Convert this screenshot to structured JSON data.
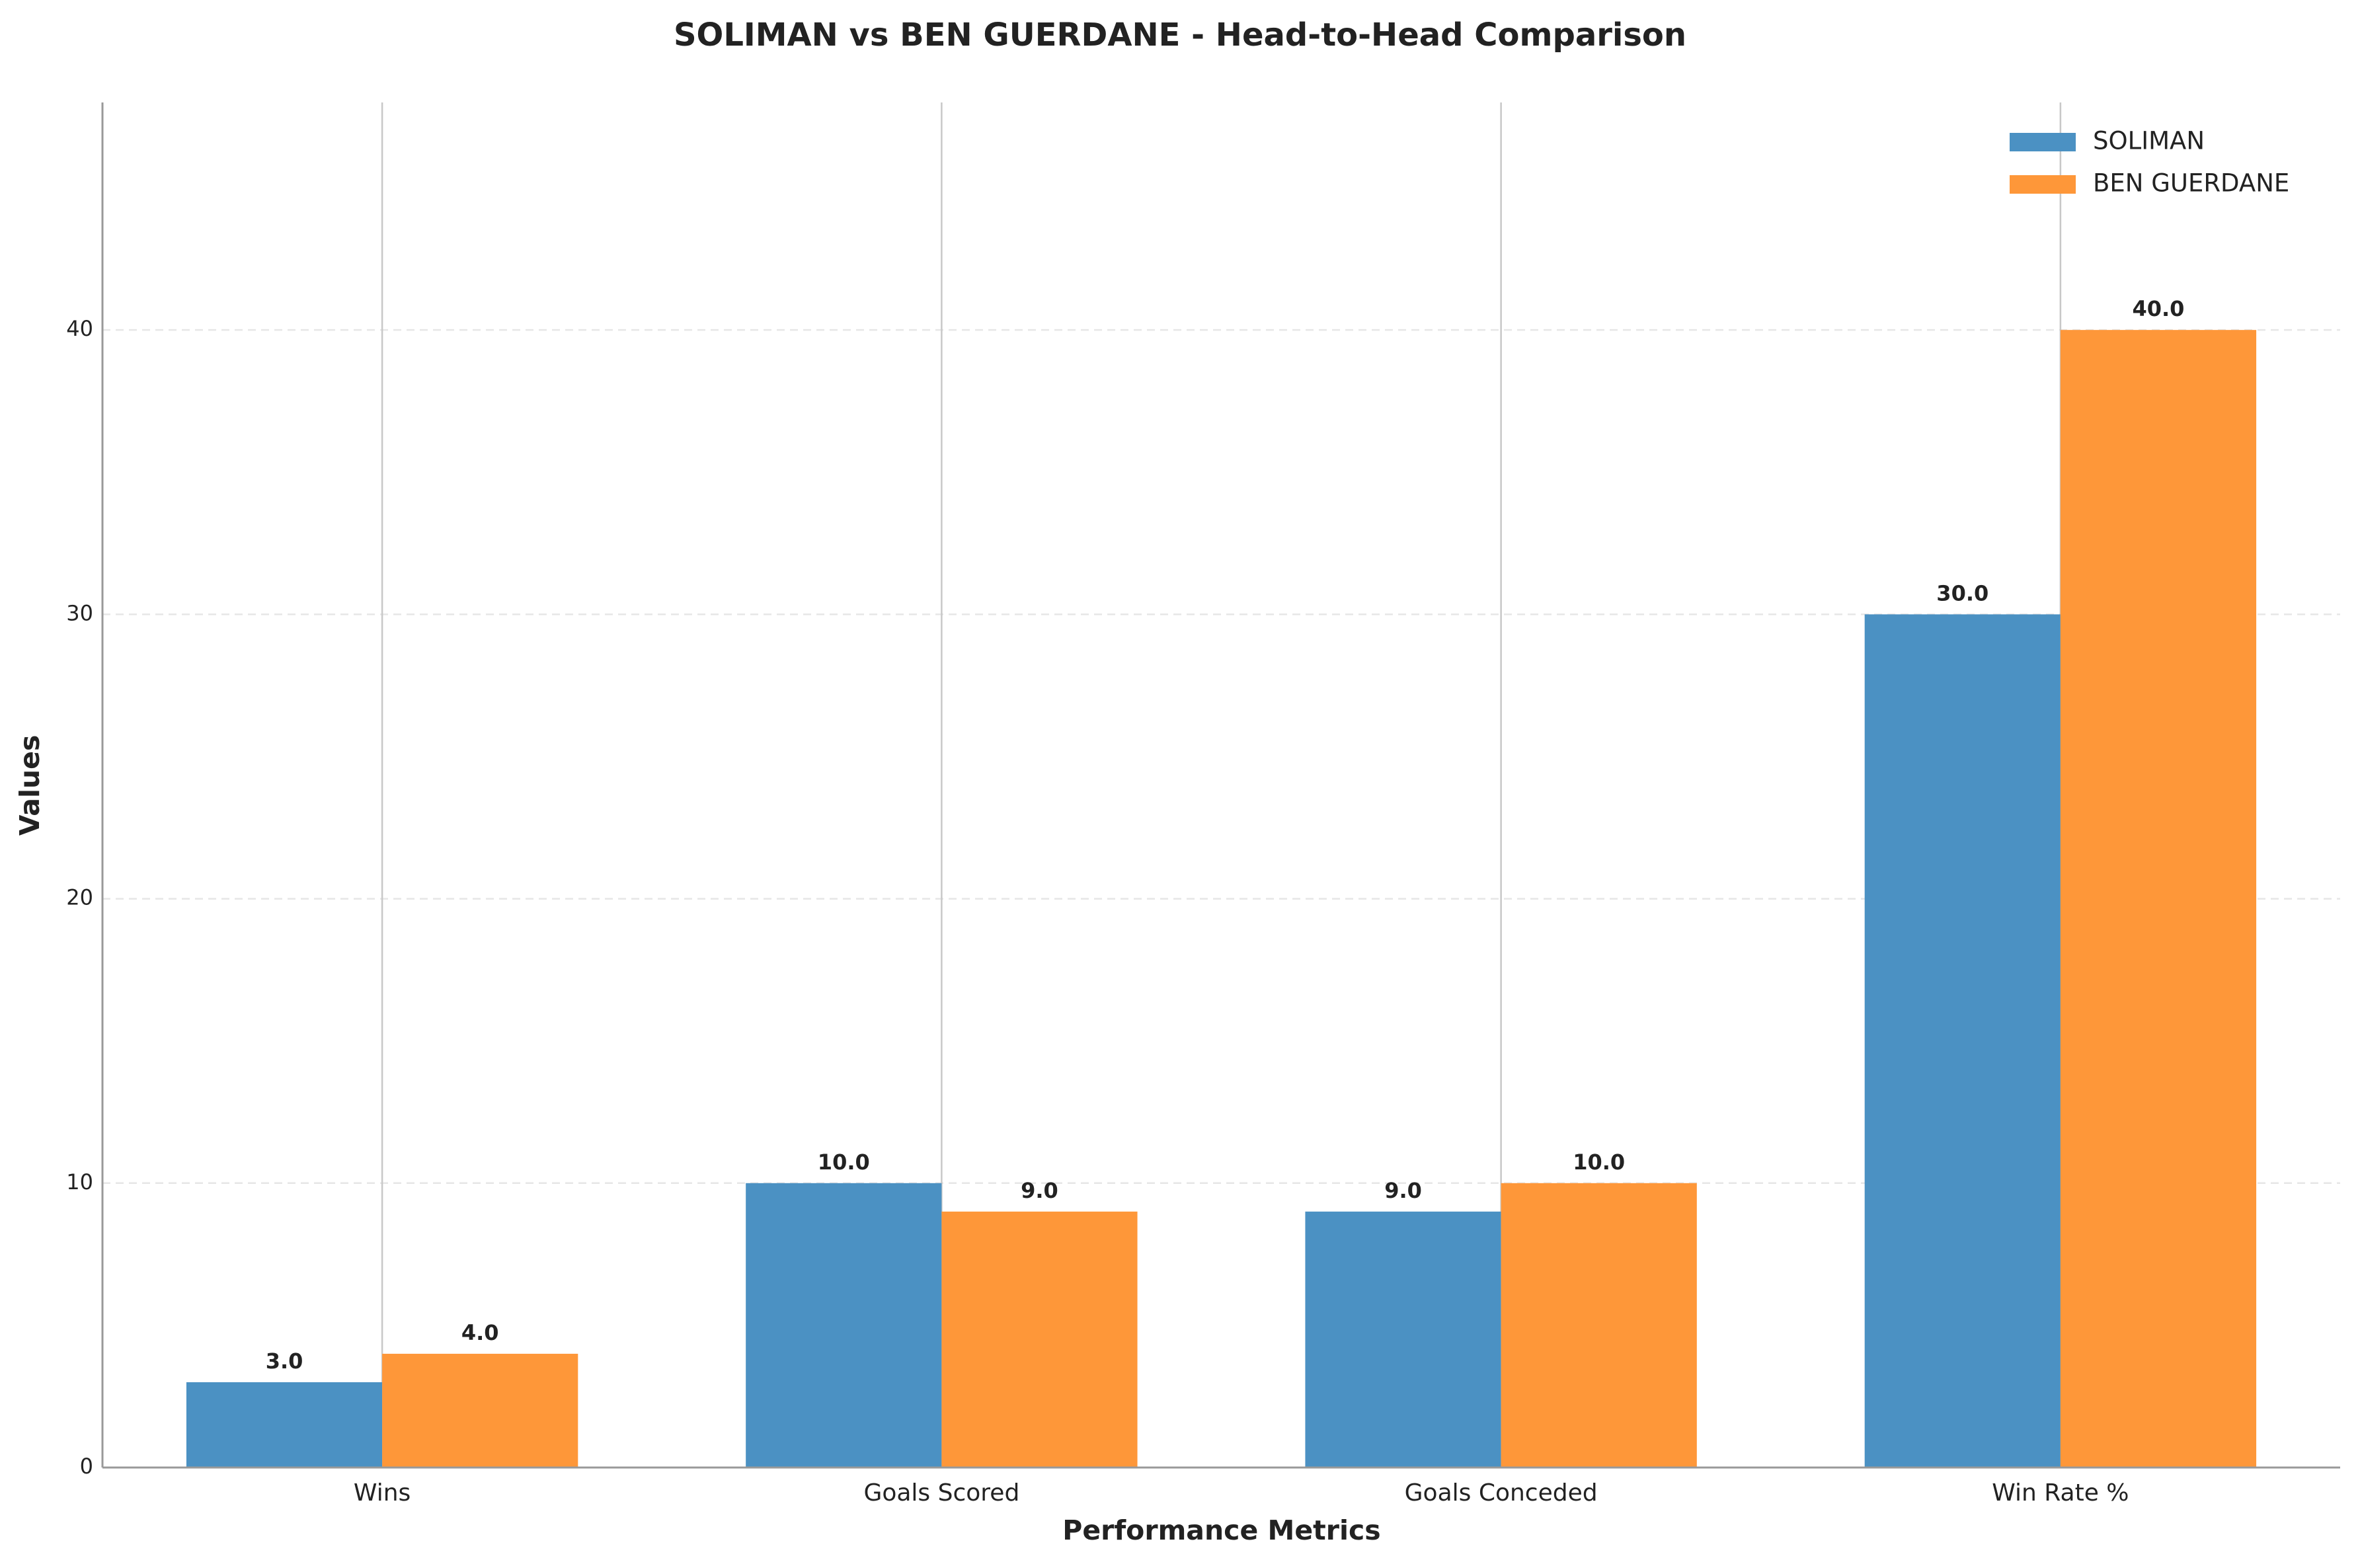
{
  "chart_data": {
    "type": "bar",
    "title": "SOLIMAN vs BEN GUERDANE - Head-to-Head Comparison",
    "x_label": "Performance Metrics",
    "y_label": "Values",
    "categories": [
      "Wins",
      "Goals Scored",
      "Goals Conceded",
      "Win Rate %"
    ],
    "series": [
      {
        "name": "SOLIMAN",
        "color": "#4b91c3",
        "values": [
          3,
          10,
          9,
          30
        ],
        "value_labels": [
          "3.0",
          "10.0",
          "9.0",
          "30.0"
        ]
      },
      {
        "name": "BEN GUERDANE",
        "color": "#fe9739",
        "values": [
          4,
          9,
          10,
          40
        ],
        "value_labels": [
          "4.0",
          "9.0",
          "10.0",
          "40.0"
        ]
      }
    ],
    "ylim": [
      0,
      48
    ],
    "yticks": [
      0,
      10,
      20,
      30,
      40
    ],
    "grid": true,
    "legend": "upper right"
  }
}
